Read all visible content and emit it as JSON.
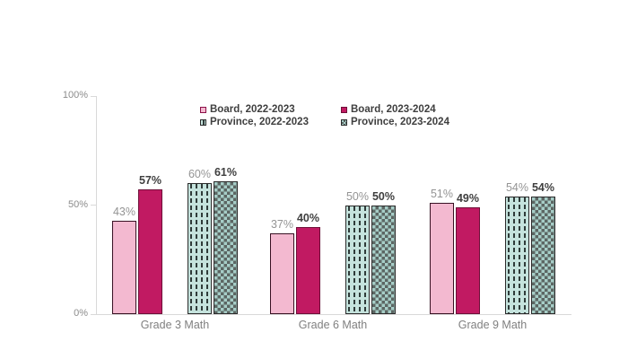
{
  "chart_data": {
    "type": "bar",
    "title": "",
    "categories": [
      "Grade 3 Math",
      "Grade 6 Math",
      "Grade 9 Math"
    ],
    "series": [
      {
        "name": "Board, 2022-2023",
        "values": [
          43,
          37,
          51
        ],
        "pattern": "solid",
        "fill": "#f3b9d0",
        "border": "#381123",
        "swatch_border": "#8d1048",
        "value_label_weight": "normal",
        "value_label_color": "#949494"
      },
      {
        "name": "Board, 2023-2024",
        "values": [
          57,
          40,
          49
        ],
        "pattern": "solid",
        "fill": "#c11a62",
        "border": "#6e0f38",
        "swatch_border": "#6e0f38",
        "value_label_weight": "bold",
        "value_label_color": "#3f3f3f"
      },
      {
        "name": "Province, 2022-2023",
        "values": [
          60,
          50,
          54
        ],
        "pattern": "dashed",
        "fill": "#c5e3dd",
        "accent": "#2f3b39",
        "border": "#2b2b2b",
        "swatch_border": "#2b2b2b",
        "value_label_weight": "normal",
        "value_label_color": "#949494"
      },
      {
        "name": "Province, 2023-2024",
        "values": [
          61,
          50,
          54
        ],
        "pattern": "checker",
        "fill": "#a6cdc7",
        "accent": "#5c6663",
        "border": "#2b2b2b",
        "swatch_border": "#2b2b2b",
        "value_label_weight": "bold",
        "value_label_color": "#3f3f3f"
      }
    ],
    "value_suffix": "%",
    "y_axis": {
      "min": 0,
      "max": 100,
      "ticks": [
        "0%",
        "50%",
        "100%"
      ]
    },
    "legend_position": "top-center",
    "grid": false,
    "axis_color": "#d9d9d9",
    "tick_label_color": "#8c8c8c",
    "category_label_color": "#808080",
    "legend_text_color": "#3f3f3f"
  }
}
